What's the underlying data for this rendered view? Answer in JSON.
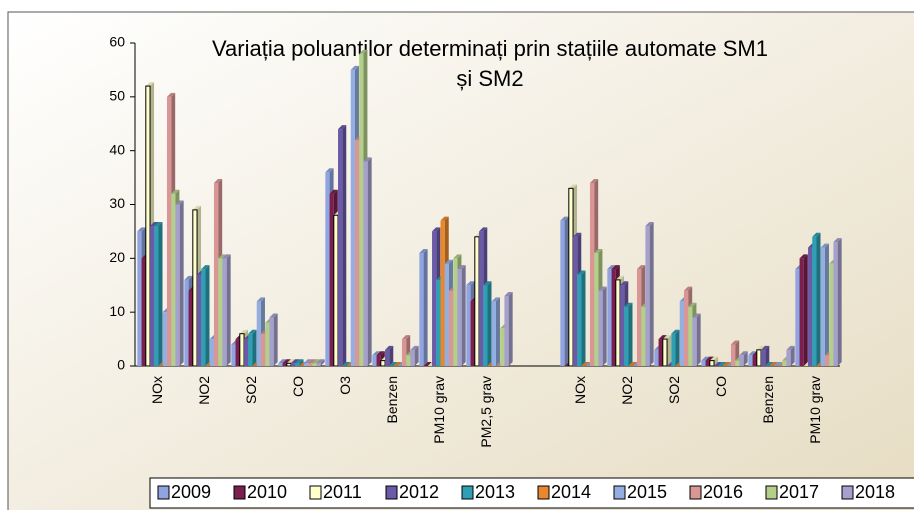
{
  "chart_data": {
    "type": "bar",
    "title": "Variația poluanților determinați prin stațiile automate SM1 și SM2",
    "categories": [
      "NOx",
      "NO2",
      "SO2",
      "CO",
      "O3",
      "Benzen",
      "PM10 grav",
      "PM2,5 grav",
      null,
      "NOx",
      "NO2",
      "SO2",
      "CO",
      "Benzen",
      "PM10 grav"
    ],
    "ylim": [
      0,
      60
    ],
    "yticks": [
      0,
      10,
      20,
      30,
      40,
      50,
      60
    ],
    "legend": "bottom",
    "series": [
      {
        "name": "2009",
        "color": "#8fa4e0",
        "values": [
          25,
          16,
          4,
          0.5,
          36,
          2,
          21,
          15,
          null,
          27,
          18,
          3,
          1,
          2,
          18
        ]
      },
      {
        "name": "2010",
        "color": "#7b1f4e",
        "values": [
          20,
          14,
          5,
          0.5,
          32,
          2,
          0,
          12,
          null,
          0,
          18,
          5,
          1,
          2,
          20
        ]
      },
      {
        "name": "2011",
        "color": "#ffffcc",
        "values": [
          52,
          29,
          6,
          0.5,
          28,
          1,
          0,
          24,
          null,
          33,
          16,
          5,
          1,
          3,
          0
        ]
      },
      {
        "name": "2012",
        "color": "#6a5aa8",
        "values": [
          26,
          17,
          5,
          0.5,
          44,
          3,
          25,
          25,
          null,
          24,
          15,
          0,
          0,
          3,
          22
        ]
      },
      {
        "name": "2013",
        "color": "#2f9fb3",
        "values": [
          26,
          18,
          6,
          0.5,
          0,
          0,
          16,
          15,
          null,
          17,
          11,
          6,
          0,
          0,
          24
        ]
      },
      {
        "name": "2014",
        "color": "#e8872e",
        "values": [
          0,
          0,
          0,
          0,
          0,
          0,
          27,
          0,
          null,
          0,
          0,
          0,
          0,
          0,
          0
        ]
      },
      {
        "name": "2015",
        "color": "#93aee0",
        "values": [
          10,
          5,
          12,
          0.5,
          55,
          0,
          19,
          12,
          null,
          0,
          0,
          12,
          0,
          0,
          22
        ]
      },
      {
        "name": "2016",
        "color": "#d99694",
        "values": [
          50,
          34,
          6,
          0.5,
          42,
          5,
          14,
          0,
          null,
          34,
          18,
          14,
          4,
          0,
          2
        ]
      },
      {
        "name": "2017",
        "color": "#b3cf8a",
        "values": [
          32,
          20,
          8,
          0.5,
          58,
          2,
          20,
          7,
          null,
          21,
          11,
          11,
          1,
          1,
          19
        ]
      },
      {
        "name": "2018",
        "color": "#a6a0cc",
        "values": [
          30,
          20,
          9,
          0.5,
          38,
          3,
          18,
          13,
          null,
          14,
          26,
          9,
          2,
          3,
          23
        ]
      }
    ]
  }
}
